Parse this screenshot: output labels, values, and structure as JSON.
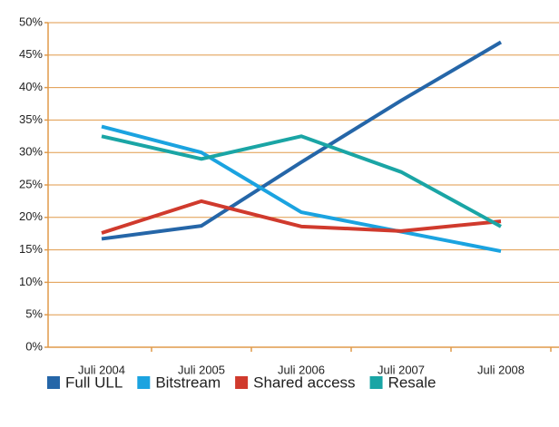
{
  "chart_data": {
    "type": "line",
    "categories": [
      "Juli 2004",
      "Juli 2005",
      "Juli 2006",
      "Juli 2007",
      "Juli 2008"
    ],
    "series": [
      {
        "name": "Full ULL",
        "color": "#2566a8",
        "values": [
          16.7,
          18.7,
          28.5,
          38,
          47
        ]
      },
      {
        "name": "Bitstream",
        "color": "#1ba3e0",
        "values": [
          34,
          30,
          20.8,
          17.8,
          14.8
        ]
      },
      {
        "name": "Shared access",
        "color": "#d03a2d",
        "values": [
          17.6,
          22.5,
          18.6,
          17.9,
          19.4
        ]
      },
      {
        "name": "Resale",
        "color": "#1aa5a5",
        "values": [
          32.5,
          29,
          32.5,
          27,
          18.6
        ]
      }
    ],
    "ylim": [
      0,
      50
    ],
    "yticks": [
      {
        "value": 0,
        "label": "0%"
      },
      {
        "value": 5,
        "label": "5%"
      },
      {
        "value": 10,
        "label": "10%"
      },
      {
        "value": 15,
        "label": "15%"
      },
      {
        "value": 20,
        "label": "20%"
      },
      {
        "value": 25,
        "label": "25%"
      },
      {
        "value": 30,
        "label": "30%"
      },
      {
        "value": 35,
        "label": "35%"
      },
      {
        "value": 40,
        "label": "40%"
      },
      {
        "value": 45,
        "label": "45%"
      },
      {
        "value": 50,
        "label": "50%"
      }
    ],
    "grid": true,
    "grid_color": "#e09a4a",
    "legend": "bottom"
  }
}
